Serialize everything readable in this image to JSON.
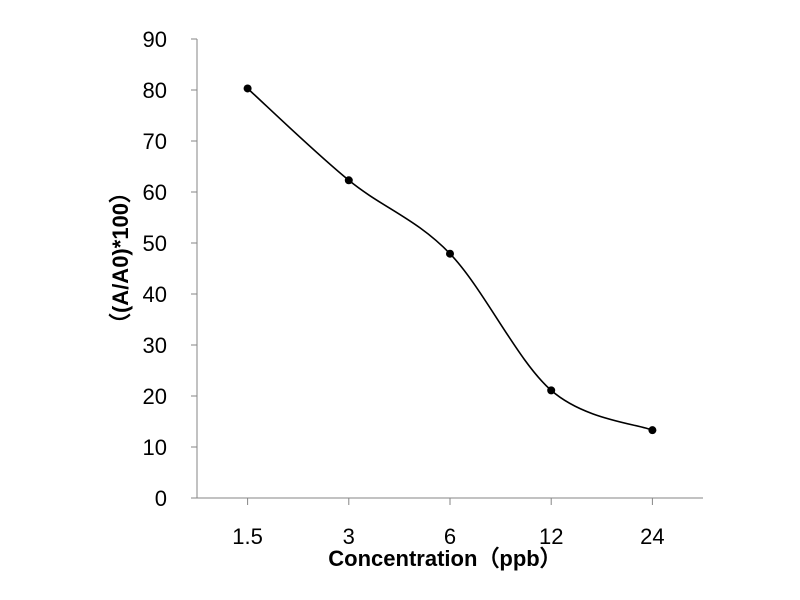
{
  "chart_data": {
    "type": "line",
    "smooth": true,
    "categories": [
      "1.5",
      "3",
      "6",
      "12",
      "24"
    ],
    "series": [
      {
        "values": [
          80.3,
          62.3,
          47.9,
          21.1,
          13.3
        ]
      }
    ],
    "xlabel": "Concentration（ppb）",
    "ylabel": "（(A/A0)*100）",
    "ylim": [
      0,
      90
    ],
    "yticks": [
      0,
      10,
      20,
      30,
      40,
      50,
      60,
      70,
      80,
      90
    ],
    "grid": false,
    "legend": "none",
    "colors": {
      "line": "#000000",
      "marker": "#000000",
      "axis": "#868686"
    }
  }
}
